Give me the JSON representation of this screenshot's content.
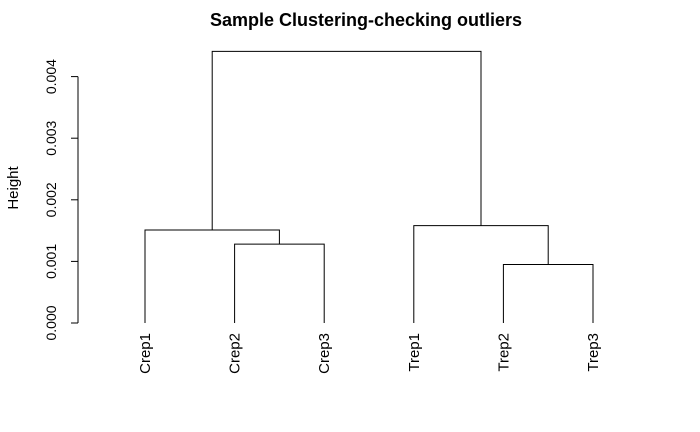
{
  "chart_data": {
    "type": "dendrogram",
    "title": "Sample Clustering-checking outliers",
    "xlabel": "",
    "ylabel": "Height",
    "ylim": [
      0,
      0.0045
    ],
    "yticks": [
      0,
      0.001,
      0.002,
      0.003,
      0.004
    ],
    "ytick_labels": [
      "0.000",
      "0.001",
      "0.002",
      "0.003",
      "0.004"
    ],
    "leaves": [
      "Crep1",
      "Crep2",
      "Crep3",
      "Trep1",
      "Trep2",
      "Trep3"
    ],
    "merges": [
      {
        "left": "Crep2",
        "right": "Crep3",
        "height": 0.00128
      },
      {
        "left": "Trep2",
        "right": "Trep3",
        "height": 0.00095
      },
      {
        "left": "Crep1",
        "right": "Crep2+Crep3",
        "height": 0.00151
      },
      {
        "left": "Trep1",
        "right": "Trep2+Trep3",
        "height": 0.00158
      },
      {
        "left": "Crep1+Crep2+Crep3",
        "right": "Trep1+Trep2+Trep3",
        "height": 0.00441
      }
    ],
    "merge_pairs": [
      [
        2,
        3
      ],
      [
        5,
        6
      ],
      [
        1,
        -1
      ],
      [
        4,
        -2
      ],
      [
        -3,
        -4
      ]
    ]
  }
}
